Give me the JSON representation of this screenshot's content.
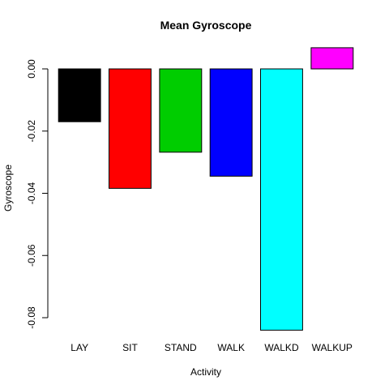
{
  "chart_data": {
    "type": "bar",
    "title": "Mean Gyroscope",
    "xlabel": "Activity",
    "ylabel": "Gyroscope",
    "categories": [
      "LAY",
      "SIT",
      "STAND",
      "WALK",
      "WALKD",
      "WALKUP"
    ],
    "values": [
      -0.017,
      -0.0384,
      -0.0268,
      -0.0345,
      -0.084,
      0.0068
    ],
    "colors": [
      "#000000",
      "#ff0000",
      "#00cd00",
      "#0000ff",
      "#00ffff",
      "#ff00ff"
    ],
    "yticks": [
      0.0,
      -0.02,
      -0.04,
      -0.06,
      -0.08
    ],
    "ytick_labels": [
      "0.00",
      "-0.02",
      "-0.04",
      "-0.06",
      "-0.08"
    ],
    "ylim": [
      -0.0844,
      0.0072
    ],
    "grid": false,
    "legend": "none"
  }
}
